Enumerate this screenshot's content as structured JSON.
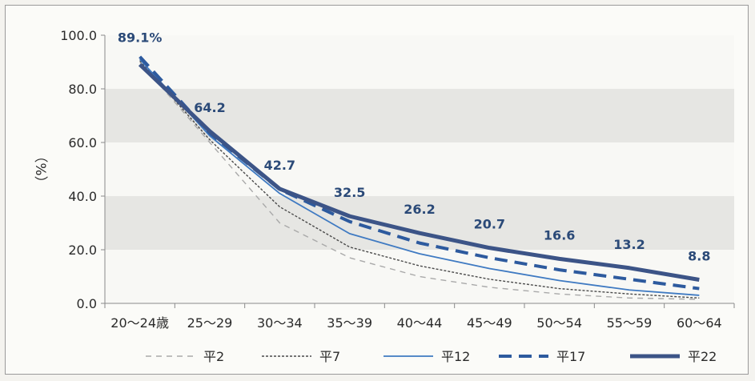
{
  "chart_data": {
    "type": "line",
    "title": "",
    "xlabel": "",
    "ylabel": "（%）",
    "ylim": [
      0,
      100
    ],
    "yticks": [
      "0.0",
      "20.0",
      "40.0",
      "60.0",
      "80.0",
      "100.0"
    ],
    "categories": [
      "20～24歳",
      "25～29",
      "30～34",
      "35～39",
      "40～44",
      "45～49",
      "50～54",
      "55～59",
      "60～64"
    ],
    "series": [
      {
        "name": "平2",
        "values": [
          90.0,
          60.0,
          30.0,
          17.0,
          10.0,
          6.0,
          3.5,
          2.0,
          1.5
        ],
        "style": "dash-long",
        "color": "#a9a9a9"
      },
      {
        "name": "平7",
        "values": [
          90.5,
          61.0,
          36.0,
          21.0,
          14.0,
          9.0,
          5.5,
          3.5,
          2.0
        ],
        "style": "dash-short",
        "color": "#4a4a4a"
      },
      {
        "name": "平12",
        "values": [
          91.0,
          62.5,
          41.0,
          26.0,
          18.5,
          13.0,
          8.5,
          5.0,
          3.0
        ],
        "style": "solid-thin",
        "color": "#3f7ac2"
      },
      {
        "name": "平17",
        "values": [
          92.0,
          63.5,
          42.5,
          30.5,
          22.5,
          17.0,
          12.5,
          9.0,
          5.5
        ],
        "style": "dash-thick",
        "color": "#2d5a9e"
      },
      {
        "name": "平22",
        "values": [
          89.1,
          64.2,
          42.7,
          32.5,
          26.2,
          20.7,
          16.6,
          13.2,
          8.8
        ],
        "style": "solid-thick",
        "color": "#3c5487"
      }
    ],
    "data_labels": [
      "89.1%",
      "64.2",
      "42.7",
      "32.5",
      "26.2",
      "20.7",
      "16.6",
      "13.2",
      "8.8"
    ],
    "grid": "alternating bands",
    "legend_position": "bottom"
  }
}
